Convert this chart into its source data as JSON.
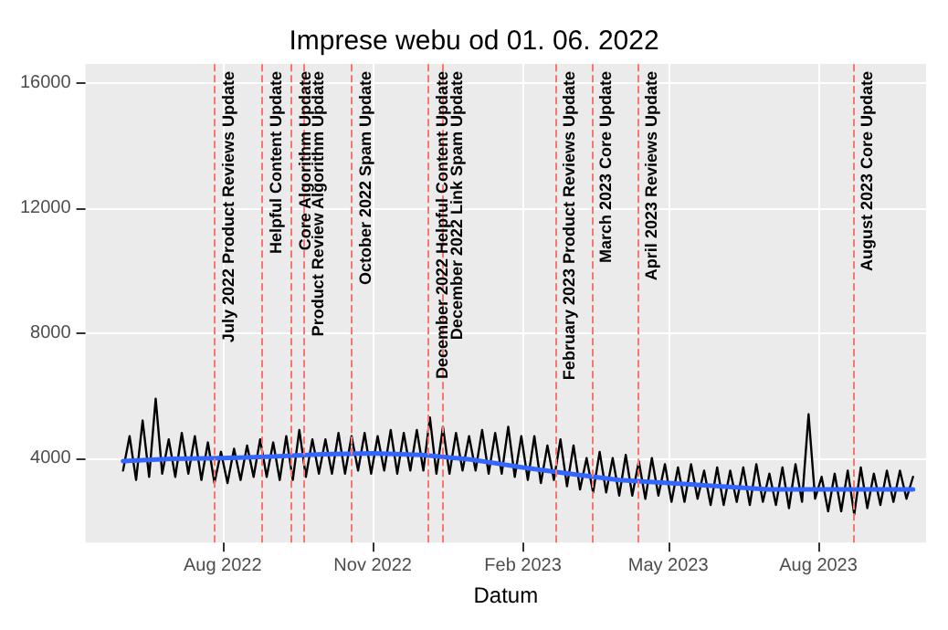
{
  "chart_data": {
    "type": "line",
    "title": "Imprese webu od 01. 06. 2022",
    "xlabel": "Datum",
    "x": [
      "2022-06-01",
      "2022-06-05",
      "2022-06-09",
      "2022-06-13",
      "2022-06-17",
      "2022-06-21",
      "2022-06-25",
      "2022-06-29",
      "2022-07-03",
      "2022-07-07",
      "2022-07-11",
      "2022-07-15",
      "2022-07-19",
      "2022-07-23",
      "2022-07-27",
      "2022-07-31",
      "2022-08-04",
      "2022-08-08",
      "2022-08-12",
      "2022-08-16",
      "2022-08-20",
      "2022-08-24",
      "2022-08-28",
      "2022-09-01",
      "2022-09-05",
      "2022-09-09",
      "2022-09-13",
      "2022-09-17",
      "2022-09-21",
      "2022-09-25",
      "2022-09-29",
      "2022-10-03",
      "2022-10-07",
      "2022-10-11",
      "2022-10-15",
      "2022-10-19",
      "2022-10-23",
      "2022-10-27",
      "2022-10-31",
      "2022-11-04",
      "2022-11-08",
      "2022-11-12",
      "2022-11-16",
      "2022-11-20",
      "2022-11-24",
      "2022-11-28",
      "2022-12-02",
      "2022-12-06",
      "2022-12-10",
      "2022-12-14",
      "2022-12-18",
      "2022-12-22",
      "2022-12-26",
      "2022-12-30",
      "2023-01-03",
      "2023-01-07",
      "2023-01-11",
      "2023-01-15",
      "2023-01-19",
      "2023-01-23",
      "2023-01-27",
      "2023-01-31",
      "2023-02-04",
      "2023-02-08",
      "2023-02-12",
      "2023-02-16",
      "2023-02-20",
      "2023-02-24",
      "2023-02-28",
      "2023-03-04",
      "2023-03-08",
      "2023-03-12",
      "2023-03-16",
      "2023-03-20",
      "2023-03-24",
      "2023-03-28",
      "2023-04-01",
      "2023-04-05",
      "2023-04-09",
      "2023-04-13",
      "2023-04-17",
      "2023-04-21",
      "2023-04-25",
      "2023-04-29",
      "2023-05-03",
      "2023-05-07",
      "2023-05-11",
      "2023-05-15",
      "2023-05-19",
      "2023-05-23",
      "2023-05-27",
      "2023-05-31",
      "2023-06-04",
      "2023-06-08",
      "2023-06-12",
      "2023-06-16",
      "2023-06-20",
      "2023-06-24",
      "2023-06-28",
      "2023-07-02",
      "2023-07-06",
      "2023-07-10",
      "2023-07-14",
      "2023-07-18",
      "2023-07-22",
      "2023-07-26",
      "2023-07-30",
      "2023-08-03",
      "2023-08-07",
      "2023-08-11",
      "2023-08-15",
      "2023-08-19",
      "2023-08-23",
      "2023-08-27",
      "2023-08-31",
      "2023-09-04",
      "2023-09-08",
      "2023-09-12",
      "2023-09-16",
      "2023-09-20",
      "2023-09-24",
      "2023-09-28"
    ],
    "series": [
      {
        "color": "#000000",
        "values": [
          3600,
          4700,
          3300,
          5200,
          3400,
          5900,
          3500,
          4600,
          3400,
          4800,
          3500,
          4700,
          3300,
          4500,
          3200,
          4200,
          3200,
          4300,
          3300,
          4400,
          3400,
          4600,
          3400,
          4500,
          3300,
          4700,
          3300,
          4900,
          3400,
          4600,
          3500,
          4600,
          3500,
          4800,
          3500,
          4700,
          3600,
          4800,
          3500,
          4700,
          3600,
          4900,
          3500,
          4800,
          3600,
          4900,
          3600,
          5300,
          3500,
          5000,
          3500,
          4800,
          3600,
          4700,
          3600,
          4900,
          3500,
          4800,
          3500,
          5000,
          3400,
          4700,
          3300,
          4700,
          3200,
          4400,
          3300,
          4600,
          3100,
          4400,
          3000,
          4000,
          2900,
          4200,
          2900,
          4000,
          2800,
          4100,
          2800,
          3900,
          2700,
          4000,
          2800,
          3800,
          2600,
          3700,
          2600,
          3800,
          2700,
          3600,
          2500,
          3700,
          2500,
          3600,
          2600,
          3700,
          2500,
          3800,
          2600,
          3500,
          2500,
          3700,
          2400,
          3800,
          2600,
          5400,
          2700,
          3400,
          2300,
          3500,
          2300,
          3600,
          2200,
          3700,
          2400,
          3500,
          2500,
          3600,
          2600,
          3600,
          2700,
          3400
        ]
      },
      {
        "color": "#3366ff",
        "x": [
          "2022-06-01",
          "2022-07-01",
          "2022-08-01",
          "2022-09-01",
          "2022-10-01",
          "2022-11-01",
          "2022-12-01",
          "2023-01-01",
          "2023-02-01",
          "2023-03-01",
          "2023-04-01",
          "2023-05-01",
          "2023-06-01",
          "2023-07-01",
          "2023-08-01",
          "2023-09-01",
          "2023-09-28"
        ],
        "values": [
          3900,
          3980,
          4000,
          4050,
          4120,
          4150,
          4100,
          3950,
          3700,
          3500,
          3300,
          3200,
          3100,
          3000,
          3000,
          3000,
          3000
        ]
      }
    ],
    "xlim": [
      "2022-05-09",
      "2023-10-06"
    ],
    "xticks": [
      {
        "value": "2022-08-01",
        "label": "Aug 2022"
      },
      {
        "value": "2022-11-01",
        "label": "Nov 2022"
      },
      {
        "value": "2023-02-01",
        "label": "Feb 2023"
      },
      {
        "value": "2023-05-01",
        "label": "May 2023"
      },
      {
        "value": "2023-08-01",
        "label": "Aug 2023"
      }
    ],
    "ylim": [
      1300,
      16600
    ],
    "yticks": [
      4000,
      8000,
      12000,
      16000
    ],
    "ref_lines": [
      {
        "axis": "x",
        "value": "2022-07-27",
        "label": "July 2022 Product Reviews Update",
        "color": "#f8766d",
        "line_style": "dashed"
      },
      {
        "axis": "x",
        "value": "2022-08-25",
        "label": "Helpful Content Update",
        "color": "#f8766d",
        "line_style": "dashed"
      },
      {
        "axis": "x",
        "value": "2022-09-12",
        "label": "Core Algorithm Update",
        "color": "#f8766d",
        "line_style": "dashed"
      },
      {
        "axis": "x",
        "value": "2022-09-20",
        "label": "Product Review Algorithm Update",
        "color": "#f8766d",
        "line_style": "dashed"
      },
      {
        "axis": "x",
        "value": "2022-10-19",
        "label": "October 2022 Spam Update",
        "color": "#f8766d",
        "line_style": "dashed"
      },
      {
        "axis": "x",
        "value": "2022-12-05",
        "label": "December 2022 Helpful Content Update",
        "color": "#f8766d",
        "line_style": "dashed"
      },
      {
        "axis": "x",
        "value": "2022-12-14",
        "label": "December 2022 Link Spam Update",
        "color": "#f8766d",
        "line_style": "dashed"
      },
      {
        "axis": "x",
        "value": "2023-02-21",
        "label": "February 2023 Product Reviews Update",
        "color": "#f8766d",
        "line_style": "dashed"
      },
      {
        "axis": "x",
        "value": "2023-03-15",
        "label": "March 2023 Core Update",
        "color": "#f8766d",
        "line_style": "dashed"
      },
      {
        "axis": "x",
        "value": "2023-04-12",
        "label": "April 2023 Reviews Update",
        "color": "#f8766d",
        "line_style": "dashed"
      },
      {
        "axis": "x",
        "value": "2023-08-22",
        "label": "August 2023 Core Update",
        "color": "#f8766d",
        "line_style": "dashed"
      }
    ],
    "grid": true,
    "marker": "none",
    "line_style": "solid"
  }
}
